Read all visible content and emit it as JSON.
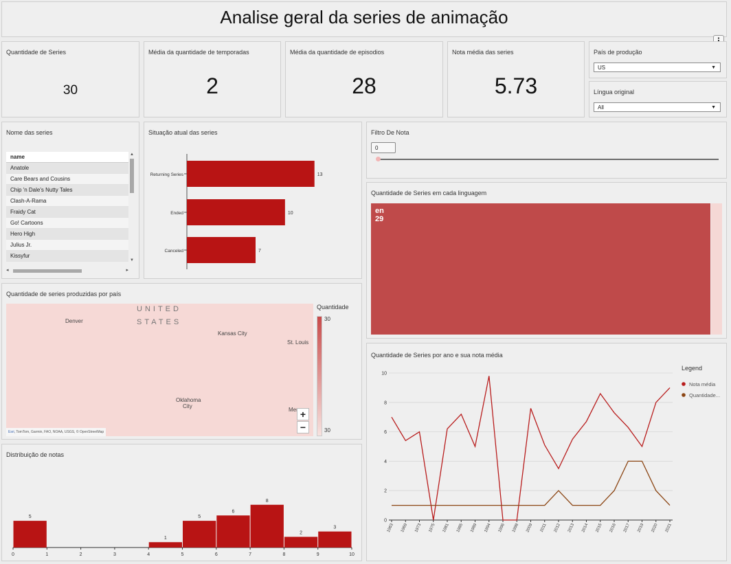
{
  "header": {
    "title": "Analise geral da series de animação",
    "more_icon": "vertical-dots-icon"
  },
  "kpis": [
    {
      "label": "Quantidade de Series",
      "value": "30"
    },
    {
      "label": "Média da quantidade de temporadas",
      "value": "2"
    },
    {
      "label": "Média da quantidade de episodios",
      "value": "28"
    },
    {
      "label": "Nota média das series",
      "value": "5.73"
    }
  ],
  "filters": {
    "country": {
      "label": "País de produção",
      "value": "US"
    },
    "language": {
      "label": "Língua original",
      "value": "All"
    }
  },
  "series_list": {
    "title": "Nome das series",
    "column": "name",
    "rows": [
      "Anatole",
      "Care Bears and Cousins",
      "Chip 'n Dale's Nutty Tales",
      "Clash-A-Rama",
      "Fraidy Cat",
      "Go! Cartoons",
      "Hero High",
      "Julius Jr.",
      "Kissyfur"
    ]
  },
  "status_chart": {
    "title": "Situação atual das series",
    "chart_data": {
      "type": "bar",
      "categories": [
        "Returning Series",
        "Ended",
        "Canceled"
      ],
      "values": [
        13,
        10,
        7
      ],
      "xlim": [
        0,
        14
      ]
    }
  },
  "rating_filter": {
    "label": "Filtro De Nota",
    "value": "0",
    "slider_fraction": 0
  },
  "language_treemap": {
    "title": "Quantidade de Series em cada linguagem",
    "chart_data": {
      "type": "treemap",
      "items": [
        {
          "name": "en",
          "value": 29
        },
        {
          "name": "",
          "value": 1
        }
      ]
    },
    "color": "#bf4a4a"
  },
  "map": {
    "title": "Quantidade de series produzidas por país",
    "labels": {
      "united": "UNITED",
      "states": "STATES",
      "denver": "Denver",
      "kansas": "Kansas City",
      "stlouis": "St. Louis",
      "oklahoma": "Oklahoma",
      "oklahoma2": "City",
      "memphis": "Mem"
    },
    "legend_title": "Quantidade",
    "legend_max": "30",
    "legend_min": "30",
    "attribution_link": "Esri",
    "attribution": ", TomTom, Garmin, FAO, NOAA, USGS, © OpenStreetMap",
    "zoom_in": "+",
    "zoom_out": "−"
  },
  "histogram": {
    "title": "Distribuição de notas",
    "chart_data": {
      "type": "bar",
      "bins": [
        [
          0,
          1
        ],
        [
          1,
          2
        ],
        [
          2,
          3
        ],
        [
          3,
          4
        ],
        [
          4,
          5
        ],
        [
          5,
          6
        ],
        [
          6,
          7
        ],
        [
          7,
          8
        ],
        [
          8,
          9
        ],
        [
          9,
          10
        ]
      ],
      "values": [
        5,
        0,
        0,
        0,
        1,
        5,
        6,
        8,
        2,
        3
      ],
      "xticks": [
        "0",
        "1",
        "2",
        "3",
        "4",
        "5",
        "6",
        "7",
        "8",
        "9",
        "10"
      ],
      "ylim": [
        0,
        9
      ]
    }
  },
  "line_chart": {
    "title": "Quantidade de Series por ano e sua nota média",
    "legend_title": "Legend",
    "chart_data": {
      "type": "line",
      "x": [
        "1963",
        "1969",
        "1973",
        "1975",
        "1981",
        "1985",
        "1989",
        "1994",
        "1996",
        "1998",
        "2009",
        "2011",
        "2012",
        "2013",
        "2014",
        "2015",
        "2016",
        "2017",
        "2019",
        "2020",
        "2021"
      ],
      "series": [
        {
          "name": "Nota média",
          "color": "#b81c1c",
          "values": [
            7.0,
            5.4,
            6.0,
            0,
            6.2,
            7.2,
            5.0,
            9.8,
            0,
            0,
            7.6,
            5.1,
            3.5,
            5.5,
            6.7,
            8.6,
            7.3,
            6.3,
            5.0,
            8.0,
            9.0
          ]
        },
        {
          "name": "Quantidade...",
          "color": "#8b4513",
          "values": [
            1,
            1,
            1,
            1,
            1,
            1,
            1,
            1,
            1,
            1,
            1,
            1,
            2,
            1,
            1,
            1,
            2,
            4,
            4,
            2,
            1
          ]
        }
      ],
      "yticks": [
        "0",
        "2",
        "4",
        "6",
        "8",
        "10"
      ],
      "ylim": [
        0,
        10
      ]
    }
  }
}
